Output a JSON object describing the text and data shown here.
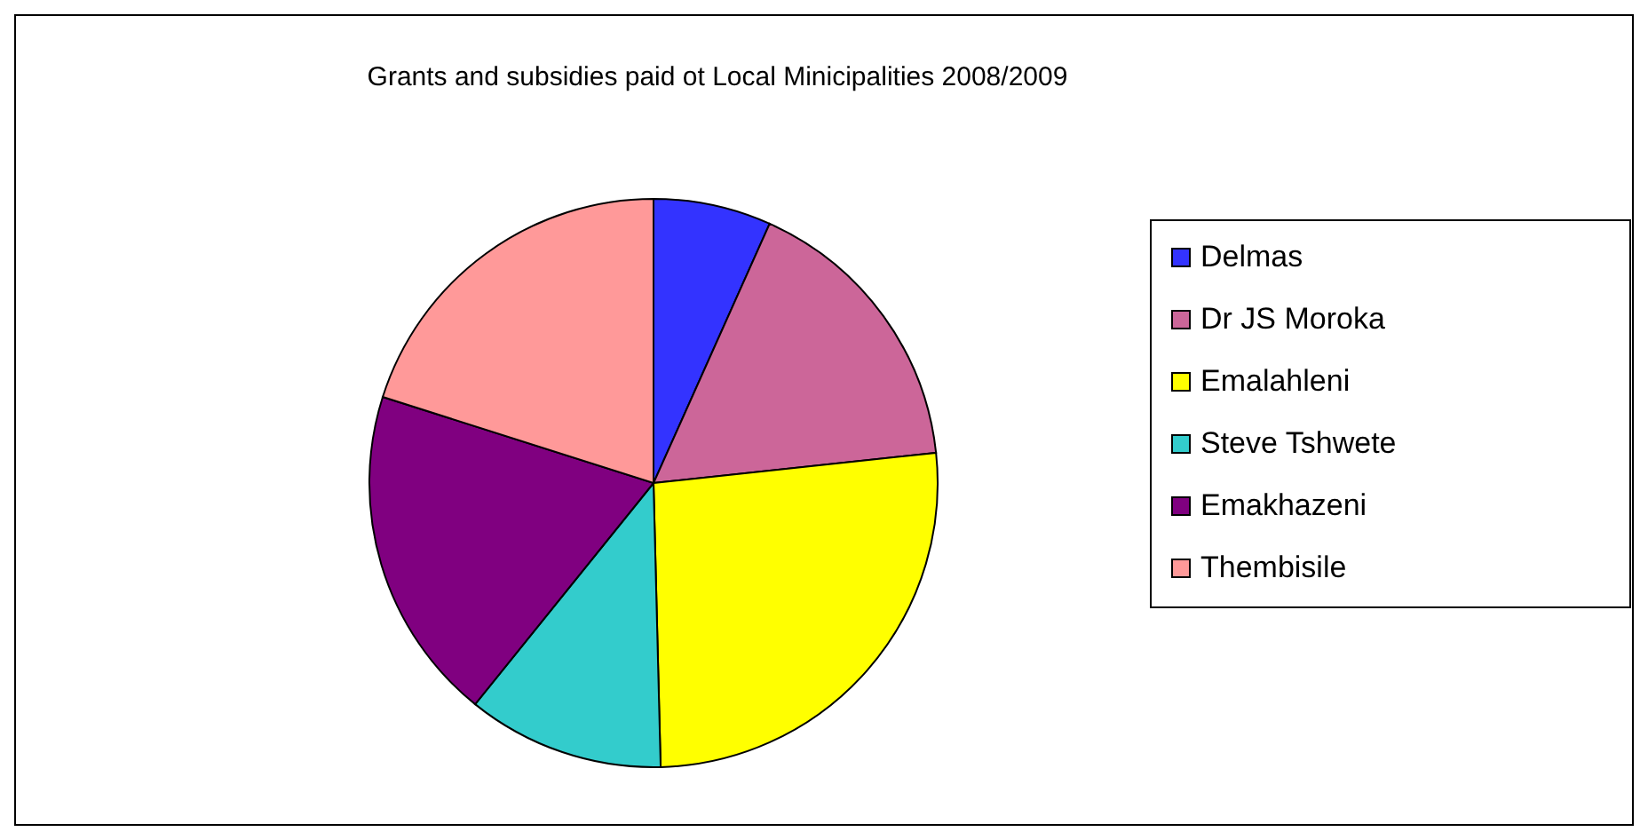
{
  "chart_data": {
    "type": "pie",
    "title": "Grants and subsidies paid ot Local Minicipalities 2008/2009",
    "categories": [
      "Delmas",
      "Dr JS Moroka",
      "Emalahleni",
      "Steve Tshwete",
      "Emakhazeni",
      "Thembisile"
    ],
    "values": [
      6.7,
      16.6,
      26.3,
      11.2,
      19.1,
      20.1
    ],
    "colors": [
      "#3333ff",
      "#cc6699",
      "#ffff00",
      "#33cccc",
      "#800080",
      "#ff9999"
    ],
    "legend": "right"
  }
}
